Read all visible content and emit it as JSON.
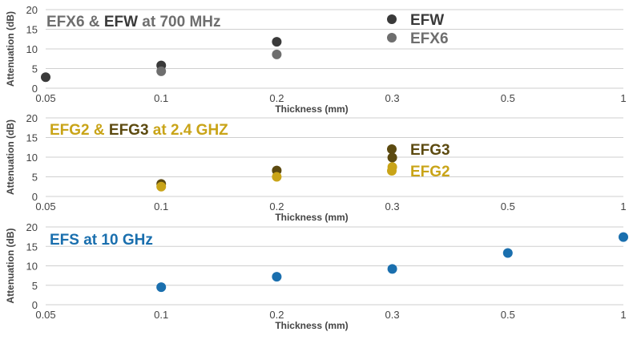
{
  "colors": {
    "efw": "#3a3a3a",
    "efx6": "#6e6e6e",
    "efg3": "#5c4a10",
    "efg2": "#c9a418",
    "efs": "#1a6fae",
    "grid": "#cfcfcf",
    "axis_text": "#444444"
  },
  "chart_data": [
    {
      "type": "scatter",
      "title_parts": [
        {
          "text": "EFX6",
          "color": "#6e6e6e"
        },
        {
          "text": " & ",
          "color": "#6e6e6e"
        },
        {
          "text": "EFW",
          "color": "#3a3a3a"
        },
        {
          "text": " at 700 MHz",
          "color": "#6e6e6e"
        }
      ],
      "xlabel": "Thickness (mm)",
      "ylabel": "Attenuation (dB)",
      "x_categories": [
        "0.05",
        "0.1",
        "0.2",
        "0.3",
        "0.5",
        "1"
      ],
      "ylim": [
        0,
        20
      ],
      "yticks": [
        "0",
        "5",
        "10",
        "15",
        "20"
      ],
      "legend": [
        {
          "name": "EFW",
          "color": "#3a3a3a"
        },
        {
          "name": "EFX6",
          "color": "#6e6e6e"
        }
      ],
      "series": [
        {
          "name": "EFW",
          "color": "#3a3a3a",
          "points": [
            {
              "x": "0.05",
              "y": 2.8
            },
            {
              "x": "0.1",
              "y": 5.8
            },
            {
              "x": "0.2",
              "y": 11.8
            }
          ]
        },
        {
          "name": "EFX6",
          "color": "#6e6e6e",
          "points": [
            {
              "x": "0.1",
              "y": 4.3
            },
            {
              "x": "0.2",
              "y": 8.6
            }
          ]
        }
      ]
    },
    {
      "type": "scatter",
      "title_parts": [
        {
          "text": "EFG2",
          "color": "#c9a418"
        },
        {
          "text": " & ",
          "color": "#c9a418"
        },
        {
          "text": "EFG3",
          "color": "#5c4a10"
        },
        {
          "text": " at 2.4 GHZ",
          "color": "#c9a418"
        }
      ],
      "xlabel": "Thickness (mm)",
      "ylabel": "Attenuation (dB)",
      "x_categories": [
        "0.05",
        "0.1",
        "0.2",
        "0.3",
        "0.5",
        "1"
      ],
      "ylim": [
        0,
        20
      ],
      "yticks": [
        "0",
        "5",
        "10",
        "15",
        "20"
      ],
      "legend": [
        {
          "name": "EFG3",
          "color": "#5c4a10"
        },
        {
          "name": "EFG2",
          "color": "#c9a418"
        }
      ],
      "series": [
        {
          "name": "EFG3",
          "color": "#5c4a10",
          "points": [
            {
              "x": "0.1",
              "y": 3.2
            },
            {
              "x": "0.2",
              "y": 6.6
            },
            {
              "x": "0.3",
              "y": 9.9
            }
          ]
        },
        {
          "name": "EFG2",
          "color": "#c9a418",
          "points": [
            {
              "x": "0.1",
              "y": 2.5
            },
            {
              "x": "0.2",
              "y": 5.0
            },
            {
              "x": "0.3",
              "y": 7.5
            }
          ]
        }
      ]
    },
    {
      "type": "scatter",
      "title_parts": [
        {
          "text": "EFS at 10 GHz",
          "color": "#1a6fae"
        }
      ],
      "xlabel": "Thickness (mm)",
      "ylabel": "Attenuation (dB)",
      "x_categories": [
        "0.05",
        "0.1",
        "0.2",
        "0.3",
        "0.5",
        "1"
      ],
      "ylim": [
        0,
        20
      ],
      "yticks": [
        "0",
        "5",
        "10",
        "15",
        "20"
      ],
      "legend": [],
      "series": [
        {
          "name": "EFS",
          "color": "#1a6fae",
          "points": [
            {
              "x": "0.1",
              "y": 4.5
            },
            {
              "x": "0.2",
              "y": 7.2
            },
            {
              "x": "0.3",
              "y": 9.2
            },
            {
              "x": "0.5",
              "y": 13.3
            },
            {
              "x": "1",
              "y": 17.4
            }
          ]
        }
      ]
    }
  ]
}
